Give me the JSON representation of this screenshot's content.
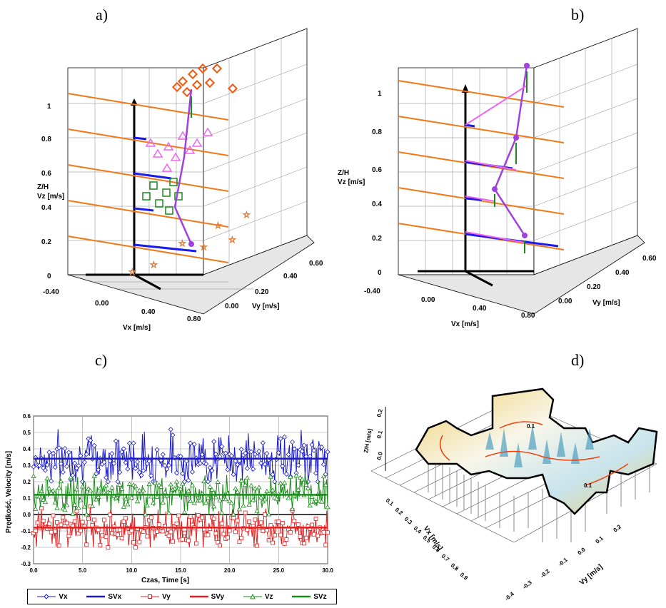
{
  "panel_labels": {
    "a": "a)",
    "b": "b)",
    "c": "c)",
    "d": "d)"
  },
  "panel_a": {
    "z_axis_label_1": "Z/H",
    "z_axis_label_2": "Vz [m/s]",
    "z_ticks": [
      "0",
      "0.2",
      "0.4",
      "0.6",
      "0.8",
      "1"
    ],
    "vx_label": "Vx [m/s]",
    "vx_ticks": [
      "-0.40",
      "0.00",
      "0.40",
      "0.80"
    ],
    "vy_label": "Vy [m/s]",
    "vy_ticks": [
      "0.00",
      "0.20",
      "0.40",
      "0.60"
    ]
  },
  "panel_b": {
    "z_axis_label_1": "Z/H",
    "z_axis_label_2": "Vz [m/s]",
    "z_ticks": [
      "0",
      "0.2",
      "0.4",
      "0.6",
      "0.8",
      "1"
    ],
    "vx_label": "Vx [m/s]",
    "vx_ticks": [
      "-0.40",
      "0.00",
      "0.40",
      "0.80"
    ],
    "vy_label": "Vy [m/s]",
    "vy_ticks": [
      "0.00",
      "0.20",
      "0.40",
      "0.60"
    ]
  },
  "panel_d": {
    "z_label": "Z/H [m/s]",
    "z_ticks": [
      "0.0",
      "0.1",
      "0.2"
    ],
    "vx_label": "Vx [m/s]",
    "vx_ticks": [
      "0.1",
      "0.2",
      "0.3",
      "0.4",
      "0.5",
      "0.6",
      "0.7",
      "0.8",
      "0.9"
    ],
    "vy_label": "Vy [m/s]",
    "vy_ticks": [
      "-0.4",
      "-0.3",
      "-0.2",
      "-0.1",
      "0.0",
      "0.1",
      "0.2"
    ],
    "contour_labels": [
      "0.1",
      "0.1"
    ]
  },
  "chart_data": {
    "type": "line",
    "xlabel": "Czas, Time [s]",
    "ylabel": "Prędkość, Velocity [m/s]",
    "xlim": [
      0,
      30
    ],
    "ylim": [
      -0.3,
      0.6
    ],
    "x_ticks": [
      "0.0",
      "5.0",
      "10.0",
      "15.0",
      "20.0",
      "25.0",
      "30.0"
    ],
    "y_ticks": [
      "-0.3",
      "-0.2",
      "-0.1",
      "0.0",
      "0.1",
      "0.2",
      "0.3",
      "0.4",
      "0.5",
      "0.6"
    ],
    "grid": true,
    "legend_position": "bottom",
    "series": [
      {
        "name": "Vx",
        "color": "#1a1acc",
        "marker": "diamond",
        "mean": 0.34,
        "min": 0.2,
        "max": 0.52
      },
      {
        "name": "SVx",
        "color": "#1a1acc",
        "marker": "none",
        "values": [
          0.34,
          0.34
        ]
      },
      {
        "name": "Vy",
        "color": "#e02020",
        "marker": "square",
        "mean": -0.08,
        "min": -0.2,
        "max": 0.05
      },
      {
        "name": "SVy",
        "color": "#e02020",
        "marker": "none",
        "values": [
          -0.08,
          -0.08
        ]
      },
      {
        "name": "Vz",
        "color": "#1a8a1a",
        "marker": "triangle",
        "mean": 0.12,
        "min": 0.0,
        "max": 0.26
      },
      {
        "name": "SVz",
        "color": "#1a8a1a",
        "marker": "none",
        "values": [
          0.12,
          0.12
        ]
      }
    ]
  }
}
